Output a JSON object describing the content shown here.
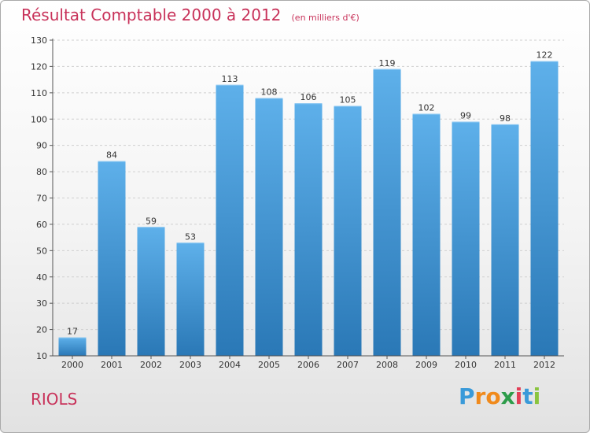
{
  "header": {
    "title": "Résultat Comptable 2000 à 2012",
    "subtitle": "(en milliers d'€)"
  },
  "footer": {
    "commune": "RIOLS",
    "logo": {
      "letters": [
        "P",
        "r",
        "o",
        "x",
        "i",
        "t",
        "i"
      ],
      "colors": [
        "#3a9ad9",
        "#f08a1c",
        "#f08a1c",
        "#2d9c4a",
        "#e23e57",
        "#3a9ad9",
        "#8ac43f"
      ]
    }
  },
  "chart_data": {
    "type": "bar",
    "title": "Résultat Comptable 2000 à 2012",
    "subtitle": "(en milliers d'€)",
    "categories": [
      "2000",
      "2001",
      "2002",
      "2003",
      "2004",
      "2005",
      "2006",
      "2007",
      "2008",
      "2009",
      "2010",
      "2011",
      "2012"
    ],
    "values": [
      17,
      84,
      59,
      53,
      113,
      108,
      106,
      105,
      119,
      102,
      99,
      98,
      122
    ],
    "ylim": [
      10,
      130
    ],
    "yticks": [
      10,
      20,
      30,
      40,
      50,
      60,
      70,
      80,
      90,
      100,
      110,
      120,
      130
    ],
    "xlabel": "",
    "ylabel": "",
    "grid": true,
    "colors": {
      "bar_top": "#5eb0ea",
      "bar_bottom": "#2a78b6",
      "label": "#333333",
      "grid": "#d0d0d0",
      "axis": "#555555"
    }
  }
}
